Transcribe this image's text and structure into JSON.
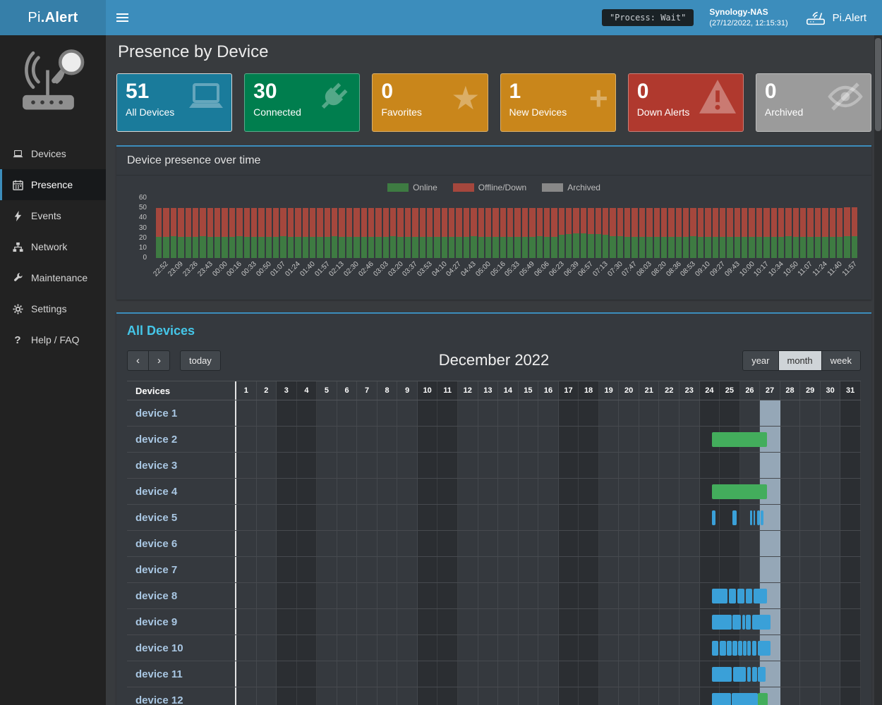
{
  "navbar": {
    "brand_light": "Pi",
    "brand_bold": ".Alert",
    "process_badge": "\"Process: Wait\"",
    "host_name": "Synology-NAS",
    "host_time": "(27/12/2022, 12:15:31)",
    "right_brand": "Pi.Alert"
  },
  "sidebar": {
    "items": [
      {
        "label": "Devices",
        "icon": "laptop-icon",
        "active": false
      },
      {
        "label": "Presence",
        "icon": "calendar-icon",
        "active": true
      },
      {
        "label": "Events",
        "icon": "bolt-icon",
        "active": false
      },
      {
        "label": "Network",
        "icon": "network-icon",
        "active": false
      },
      {
        "label": "Maintenance",
        "icon": "wrench-icon",
        "active": false
      },
      {
        "label": "Settings",
        "icon": "gear-icon",
        "active": false
      },
      {
        "label": "Help / FAQ",
        "icon": "question-icon",
        "active": false
      }
    ]
  },
  "page": {
    "title": "Presence by Device"
  },
  "stat_cards": [
    {
      "value": "51",
      "label": "All Devices",
      "color": "#1a7b9b",
      "icon": "laptop-icon"
    },
    {
      "value": "30",
      "label": "Connected",
      "color": "#007e4e",
      "icon": "plug-icon"
    },
    {
      "value": "0",
      "label": "Favorites",
      "color": "#c9861b",
      "icon": "star-icon"
    },
    {
      "value": "1",
      "label": "New Devices",
      "color": "#c9861b",
      "icon": "plus-icon"
    },
    {
      "value": "0",
      "label": "Down Alerts",
      "color": "#b0392e",
      "icon": "warning-icon"
    },
    {
      "value": "0",
      "label": "Archived",
      "color": "#9b9b9b",
      "icon": "eye-slash-icon"
    }
  ],
  "presence_chart": {
    "panel_title": "Device presence over time"
  },
  "chart_data": {
    "type": "bar",
    "stacked": true,
    "title": "Device presence over time",
    "ylim": [
      0,
      60
    ],
    "y_ticks": [
      0,
      10,
      20,
      30,
      40,
      50,
      60
    ],
    "legend_position": "top-center",
    "x_labels": [
      "22:52",
      "23:09",
      "23:26",
      "23:43",
      "00:00",
      "00:16",
      "00:33",
      "00:50",
      "01:07",
      "01:24",
      "01:40",
      "01:57",
      "02:13",
      "02:30",
      "02:46",
      "03:03",
      "03:20",
      "03:37",
      "03:53",
      "04:10",
      "04:27",
      "04:43",
      "05:00",
      "05:16",
      "05:33",
      "05:49",
      "06:06",
      "06:23",
      "06:39",
      "06:57",
      "07:13",
      "07:30",
      "07:47",
      "08:03",
      "08:20",
      "08:36",
      "08:53",
      "09:10",
      "09:27",
      "09:43",
      "10:00",
      "10:17",
      "10:34",
      "10:50",
      "11:07",
      "11:24",
      "11:40",
      "11:57"
    ],
    "series": [
      {
        "name": "Online",
        "color": "#3e7b42",
        "values": [
          21,
          21,
          22,
          21,
          21,
          21,
          22,
          21,
          21,
          21,
          21,
          22,
          21,
          21,
          21,
          21,
          21,
          22,
          21,
          21,
          21,
          21,
          21,
          21,
          22,
          21,
          21,
          21,
          21,
          21,
          21,
          21,
          22,
          21,
          21,
          21,
          21,
          21,
          21,
          21,
          21,
          21,
          21,
          22,
          21,
          21,
          21,
          21,
          21,
          21,
          21,
          21,
          22,
          21,
          21,
          23,
          24,
          25,
          25,
          24,
          24,
          23,
          22,
          22,
          21,
          21,
          21,
          21,
          21,
          21,
          21,
          21,
          21,
          22,
          21,
          21,
          21,
          21,
          21,
          21,
          21,
          21,
          21,
          21,
          21,
          21,
          22,
          21,
          21,
          21,
          21,
          21,
          21,
          21,
          22,
          22
        ]
      },
      {
        "name": "Offline/Down",
        "color": "#a5473d",
        "values": [
          29,
          29,
          28,
          29,
          29,
          29,
          28,
          29,
          29,
          29,
          29,
          28,
          29,
          29,
          29,
          29,
          29,
          28,
          29,
          29,
          29,
          29,
          29,
          29,
          28,
          29,
          29,
          29,
          29,
          29,
          29,
          29,
          28,
          29,
          29,
          29,
          29,
          29,
          29,
          29,
          29,
          29,
          29,
          28,
          29,
          29,
          29,
          29,
          29,
          29,
          29,
          29,
          28,
          29,
          29,
          27,
          26,
          25,
          25,
          26,
          26,
          27,
          28,
          28,
          29,
          29,
          29,
          29,
          29,
          29,
          29,
          29,
          29,
          28,
          29,
          29,
          29,
          29,
          29,
          29,
          29,
          29,
          29,
          29,
          29,
          29,
          28,
          29,
          29,
          29,
          29,
          29,
          29,
          29,
          29,
          29
        ]
      },
      {
        "name": "Archived",
        "color": "#888888",
        "values": [
          0,
          0,
          0,
          0,
          0,
          0,
          0,
          0,
          0,
          0,
          0,
          0,
          0,
          0,
          0,
          0,
          0,
          0,
          0,
          0,
          0,
          0,
          0,
          0,
          0,
          0,
          0,
          0,
          0,
          0,
          0,
          0,
          0,
          0,
          0,
          0,
          0,
          0,
          0,
          0,
          0,
          0,
          0,
          0,
          0,
          0,
          0,
          0,
          0,
          0,
          0,
          0,
          0,
          0,
          0,
          0,
          0,
          0,
          0,
          0,
          0,
          0,
          0,
          0,
          0,
          0,
          0,
          0,
          0,
          0,
          0,
          0,
          0,
          0,
          0,
          0,
          0,
          0,
          0,
          0,
          0,
          0,
          0,
          0,
          0,
          0,
          0,
          0,
          0,
          0,
          0,
          0,
          0,
          0,
          0,
          0
        ]
      }
    ]
  },
  "calendar": {
    "panel_title": "All Devices",
    "nav": {
      "prev": "‹",
      "next": "›",
      "today": "today"
    },
    "title": "December 2022",
    "views": [
      {
        "label": "year",
        "active": false
      },
      {
        "label": "month",
        "active": true
      },
      {
        "label": "week",
        "active": false
      }
    ],
    "column_header": "Devices",
    "days_in_month": 31,
    "weekend_days": [
      3,
      4,
      10,
      11,
      17,
      18,
      24,
      25,
      31
    ],
    "today_day": 27,
    "event_colors": {
      "blue": "#3aa0d8",
      "green": "#43ad5c"
    },
    "devices": [
      {
        "name": "device 1",
        "events": []
      },
      {
        "name": "device 2",
        "events": [
          {
            "start": 24.6,
            "end": 27.35,
            "color": "green"
          }
        ]
      },
      {
        "name": "device 3",
        "events": []
      },
      {
        "name": "device 4",
        "events": [
          {
            "start": 24.6,
            "end": 27.35,
            "color": "green"
          }
        ]
      },
      {
        "name": "device 5",
        "events": [
          {
            "start": 24.6,
            "end": 24.78,
            "color": "blue"
          },
          {
            "start": 25.62,
            "end": 25.85,
            "color": "blue"
          },
          {
            "start": 26.5,
            "end": 26.62,
            "color": "blue"
          },
          {
            "start": 26.66,
            "end": 26.76,
            "color": "blue"
          },
          {
            "start": 26.84,
            "end": 26.98,
            "color": "blue"
          },
          {
            "start": 27.02,
            "end": 27.18,
            "color": "blue"
          }
        ]
      },
      {
        "name": "device 6",
        "events": []
      },
      {
        "name": "device 7",
        "events": []
      },
      {
        "name": "device 8",
        "events": [
          {
            "start": 24.6,
            "end": 25.38,
            "color": "blue"
          },
          {
            "start": 25.44,
            "end": 25.8,
            "color": "blue"
          },
          {
            "start": 25.86,
            "end": 26.22,
            "color": "blue"
          },
          {
            "start": 26.28,
            "end": 26.62,
            "color": "blue"
          },
          {
            "start": 26.68,
            "end": 27.35,
            "color": "blue"
          }
        ]
      },
      {
        "name": "device 9",
        "events": [
          {
            "start": 24.6,
            "end": 25.58,
            "color": "blue"
          },
          {
            "start": 25.64,
            "end": 26.04,
            "color": "blue"
          },
          {
            "start": 26.1,
            "end": 26.24,
            "color": "blue"
          },
          {
            "start": 26.3,
            "end": 26.54,
            "color": "blue"
          },
          {
            "start": 26.6,
            "end": 27.5,
            "color": "blue"
          }
        ]
      },
      {
        "name": "device 10",
        "events": [
          {
            "start": 24.6,
            "end": 24.92,
            "color": "blue"
          },
          {
            "start": 24.98,
            "end": 25.3,
            "color": "blue"
          },
          {
            "start": 25.36,
            "end": 25.58,
            "color": "blue"
          },
          {
            "start": 25.64,
            "end": 25.86,
            "color": "blue"
          },
          {
            "start": 25.92,
            "end": 26.1,
            "color": "blue"
          },
          {
            "start": 26.16,
            "end": 26.31,
            "color": "blue"
          },
          {
            "start": 26.37,
            "end": 26.53,
            "color": "blue"
          },
          {
            "start": 26.59,
            "end": 26.81,
            "color": "blue"
          },
          {
            "start": 26.87,
            "end": 27.5,
            "color": "blue"
          }
        ]
      },
      {
        "name": "device 11",
        "events": [
          {
            "start": 24.6,
            "end": 25.6,
            "color": "blue"
          },
          {
            "start": 25.66,
            "end": 26.3,
            "color": "blue"
          },
          {
            "start": 26.36,
            "end": 26.55,
            "color": "blue"
          },
          {
            "start": 26.61,
            "end": 26.84,
            "color": "blue"
          },
          {
            "start": 26.9,
            "end": 27.28,
            "color": "blue"
          }
        ]
      },
      {
        "name": "device 12",
        "events": [
          {
            "start": 24.6,
            "end": 25.54,
            "color": "blue"
          },
          {
            "start": 25.6,
            "end": 26.88,
            "color": "blue"
          },
          {
            "start": 26.88,
            "end": 27.38,
            "color": "green"
          }
        ]
      }
    ]
  }
}
